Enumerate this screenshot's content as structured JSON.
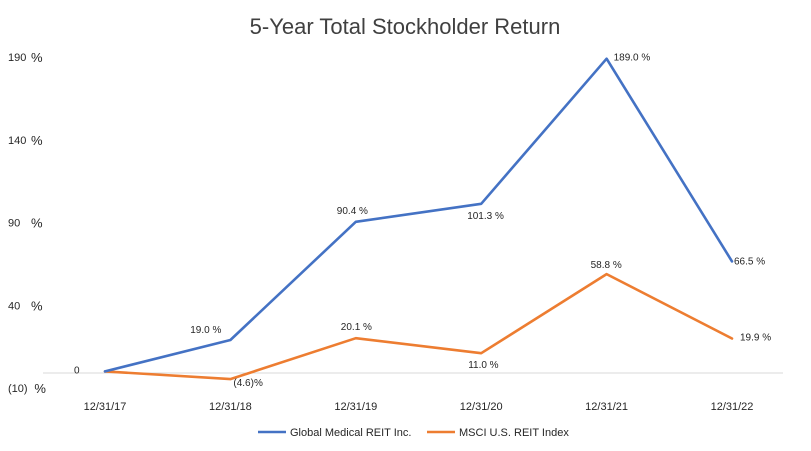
{
  "chart_data": {
    "type": "line",
    "title": "5-Year Total Stockholder Return",
    "categories": [
      "12/31/17",
      "12/31/18",
      "12/31/19",
      "12/31/20",
      "12/31/21",
      "12/31/22"
    ],
    "y_ticks": [
      {
        "value": 190,
        "label": "190",
        "unit": "%"
      },
      {
        "value": 140,
        "label": "140",
        "unit": "%"
      },
      {
        "value": 90,
        "label": "90",
        "unit": "%"
      },
      {
        "value": 40,
        "label": "40",
        "unit": "%"
      },
      {
        "value": -10,
        "label": "(10)",
        "unit": "%"
      }
    ],
    "ylim": [
      -10,
      190
    ],
    "grid": false,
    "legend_position": "bottom",
    "series": [
      {
        "name": "Global Medical REIT Inc.",
        "color": "#4472C4",
        "values": [
          0,
          19.0,
          90.4,
          101.3,
          189.0,
          66.5
        ],
        "labels": [
          "0",
          "19.0 %",
          "90.4 %",
          "101.3 %",
          "189.0 %",
          "66.5 %"
        ]
      },
      {
        "name": "MSCI U.S. REIT Index",
        "color": "#ED7D31",
        "values": [
          0,
          -4.6,
          20.1,
          11.0,
          58.8,
          19.9
        ],
        "labels": [
          "",
          "(4.6)%",
          "20.1 %",
          "11.0 %",
          "58.8 %",
          "19.9 %"
        ]
      }
    ]
  }
}
